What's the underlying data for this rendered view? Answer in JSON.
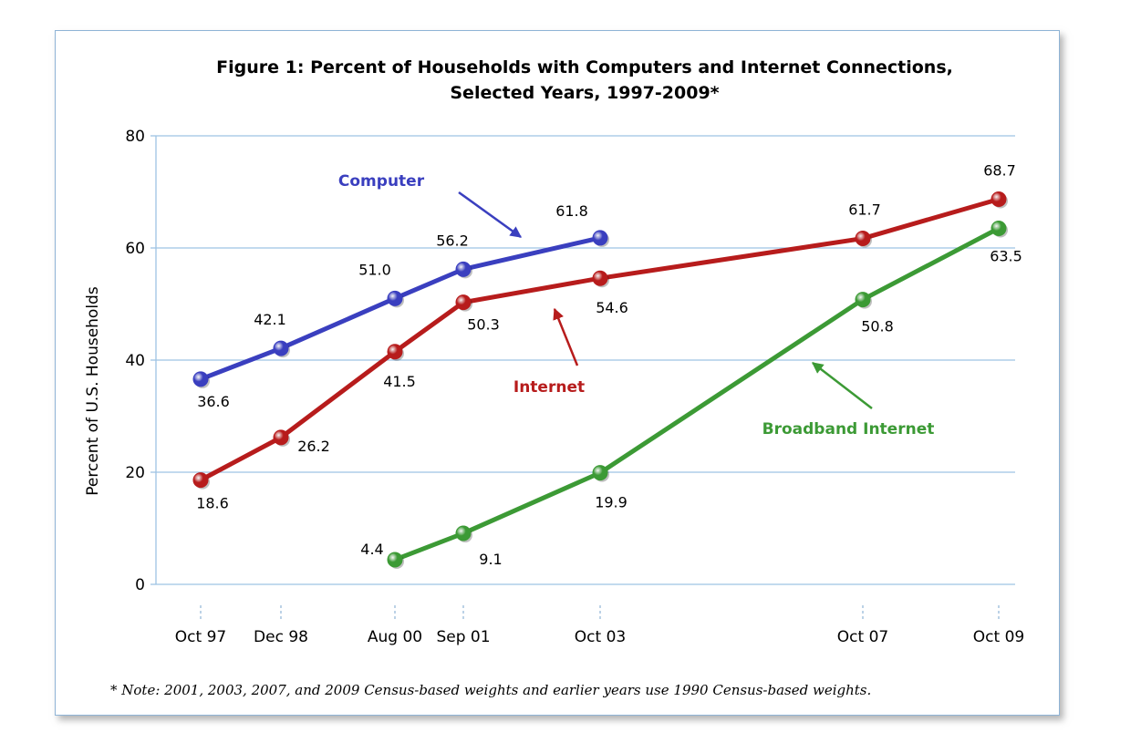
{
  "chart_data": {
    "type": "line",
    "title": "Figure 1:  Percent of Households with Computers and Internet Connections,",
    "subtitle": "Selected Years, 1997-2009*",
    "ylabel": "Percent of U.S. Households",
    "xlabel": "",
    "ylim": [
      0,
      80
    ],
    "yticks": [
      "0",
      "20",
      "40",
      "60",
      "80"
    ],
    "categories": [
      "Oct 97",
      "Dec 98",
      "Aug 00",
      "Sep 01",
      "Oct 03",
      "Oct 07",
      "Oct 09"
    ],
    "grid": "horizontal",
    "series": [
      {
        "name": "Computer",
        "color": "#3a3fbf",
        "values": [
          36.6,
          42.1,
          51.0,
          56.2,
          61.8,
          null,
          null
        ],
        "labels": [
          "36.6",
          "42.1",
          "51.0",
          "56.2",
          "61.8",
          null,
          null
        ]
      },
      {
        "name": "Internet",
        "color": "#b71c1c",
        "values": [
          18.6,
          26.2,
          41.5,
          50.3,
          54.6,
          61.7,
          68.7
        ],
        "labels": [
          "18.6",
          "26.2",
          "41.5",
          "50.3",
          "54.6",
          "61.7",
          "68.7"
        ]
      },
      {
        "name": "Broadband Internet",
        "color": "#3c9a35",
        "values": [
          null,
          null,
          4.4,
          9.1,
          19.9,
          50.8,
          63.5
        ],
        "labels": [
          null,
          null,
          "4.4",
          "9.1",
          "19.9",
          "50.8",
          "63.5"
        ]
      }
    ],
    "note": "* Note:  2001, 2003, 2007, and 2009 Census-based weights and earlier years use 1990 Census-based weights."
  }
}
